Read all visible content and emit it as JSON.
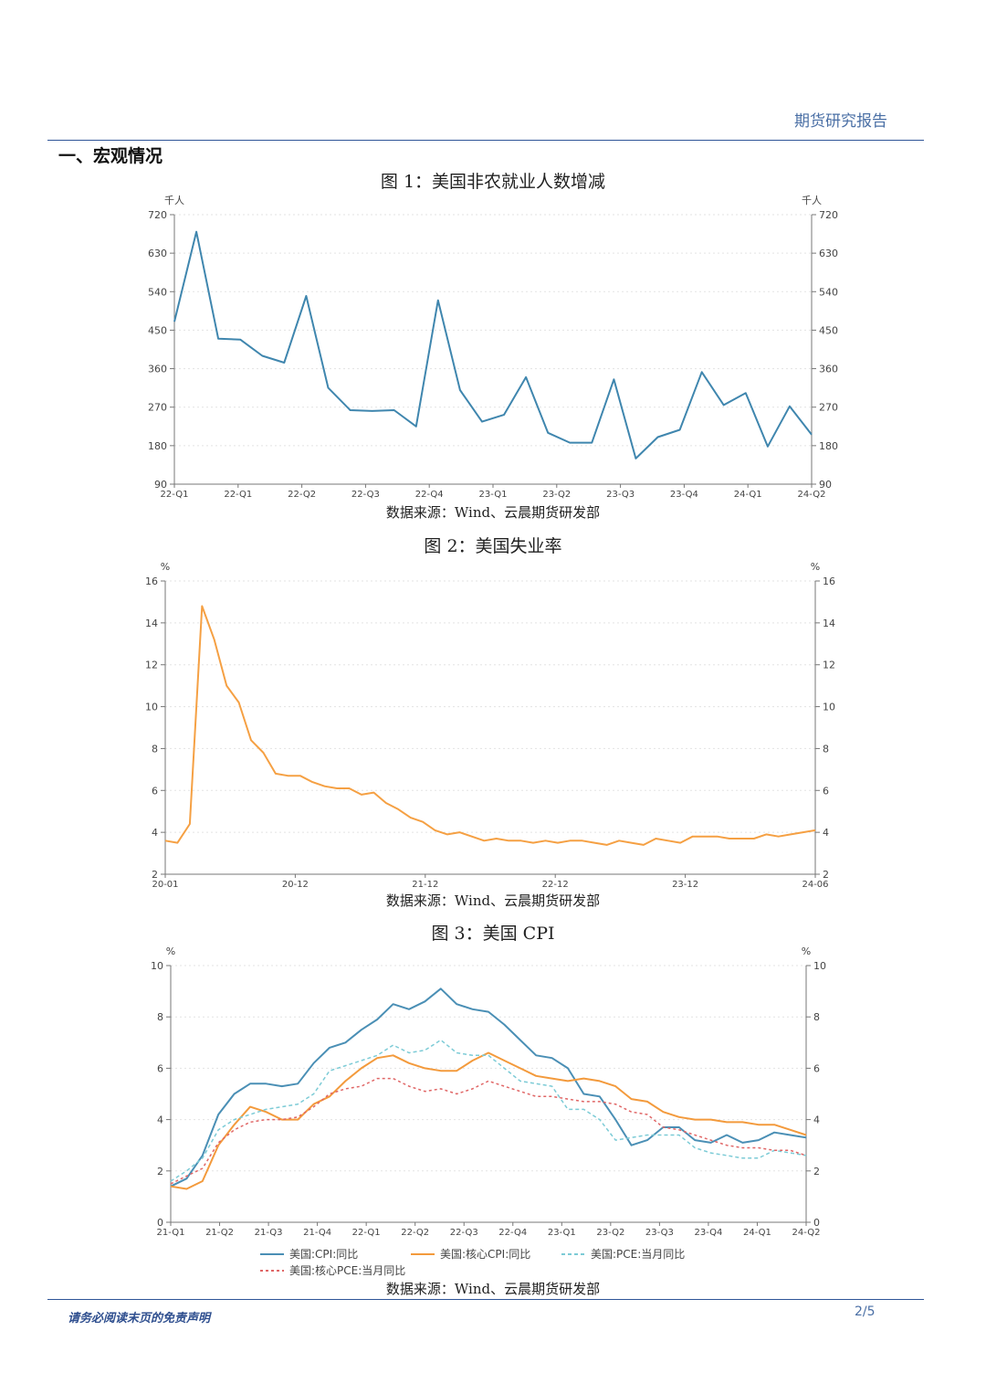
{
  "header": {
    "title": "期货研究报告"
  },
  "section": {
    "title": "一、宏观情况"
  },
  "footer": {
    "note": "请务必阅读末页的免责声明",
    "page": "2/5"
  },
  "chart_data": [
    {
      "type": "line",
      "title": "图 1：美国非农就业人数增减",
      "source": "数据来源：Wind、云晨期货研发部",
      "unit_left": "千人",
      "unit_right": "千人",
      "ylim": [
        90,
        720
      ],
      "yticks": [
        90,
        180,
        270,
        360,
        450,
        540,
        630,
        720
      ],
      "x_tick_labels": [
        "22-Q1",
        "22-Q1",
        "22-Q2",
        "22-Q3",
        "22-Q4",
        "23-Q1",
        "23-Q2",
        "23-Q3",
        "23-Q4",
        "24-Q1",
        "24-Q2"
      ],
      "color": "#3f86ae",
      "series": [
        {
          "values": [
            470,
            680,
            430,
            428,
            390,
            374,
            530,
            315,
            263,
            261,
            263,
            225,
            520,
            310,
            236,
            252,
            340,
            210,
            187,
            187,
            335,
            150,
            200,
            217,
            352,
            275,
            303,
            178,
            272,
            206
          ]
        }
      ]
    },
    {
      "type": "line",
      "title": "图 2：美国失业率",
      "source": "数据来源：Wind、云晨期货研发部",
      "unit_left": "%",
      "unit_right": "%",
      "ylim": [
        2,
        16
      ],
      "yticks": [
        2,
        4,
        6,
        8,
        10,
        12,
        14,
        16
      ],
      "x_tick_labels": [
        "20-01",
        "20-12",
        "21-12",
        "22-12",
        "23-12",
        "24-06"
      ],
      "color": "#f5a043",
      "series": [
        {
          "values": [
            3.6,
            3.5,
            4.4,
            14.8,
            13.2,
            11.0,
            10.2,
            8.4,
            7.8,
            6.8,
            6.7,
            6.7,
            6.4,
            6.2,
            6.1,
            6.1,
            5.8,
            5.9,
            5.4,
            5.1,
            4.7,
            4.5,
            4.1,
            3.9,
            4.0,
            3.8,
            3.6,
            3.7,
            3.6,
            3.6,
            3.5,
            3.6,
            3.5,
            3.6,
            3.6,
            3.5,
            3.4,
            3.6,
            3.5,
            3.4,
            3.7,
            3.6,
            3.5,
            3.8,
            3.8,
            3.8,
            3.7,
            3.7,
            3.7,
            3.9,
            3.8,
            3.9,
            4.0,
            4.1
          ]
        }
      ]
    },
    {
      "type": "line",
      "title": "图 3：美国 CPI",
      "source": "数据来源：Wind、云晨期货研发部",
      "unit_left": "%",
      "unit_right": "%",
      "ylim": [
        0,
        10
      ],
      "yticks": [
        0,
        2,
        4,
        6,
        8,
        10
      ],
      "x_tick_labels": [
        "21-Q1",
        "21-Q2",
        "21-Q3",
        "21-Q4",
        "22-Q1",
        "22-Q2",
        "22-Q3",
        "22-Q4",
        "23-Q1",
        "23-Q2",
        "23-Q3",
        "23-Q4",
        "24-Q1",
        "24-Q2"
      ],
      "series": [
        {
          "name": "美国:CPI:同比",
          "color": "#4a8fb5",
          "dash": "",
          "values": [
            1.4,
            1.7,
            2.6,
            4.2,
            5.0,
            5.4,
            5.4,
            5.3,
            5.4,
            6.2,
            6.8,
            7.0,
            7.5,
            7.9,
            8.5,
            8.3,
            8.6,
            9.1,
            8.5,
            8.3,
            8.2,
            7.7,
            7.1,
            6.5,
            6.4,
            6.0,
            5.0,
            4.9,
            4.0,
            3.0,
            3.2,
            3.7,
            3.7,
            3.2,
            3.1,
            3.4,
            3.1,
            3.2,
            3.5,
            3.4,
            3.3
          ]
        },
        {
          "name": "美国:核心CPI:同比",
          "color": "#f39a3c",
          "dash": "",
          "values": [
            1.4,
            1.3,
            1.6,
            3.0,
            3.8,
            4.5,
            4.3,
            4.0,
            4.0,
            4.6,
            4.9,
            5.5,
            6.0,
            6.4,
            6.5,
            6.2,
            6.0,
            5.9,
            5.9,
            6.3,
            6.6,
            6.3,
            6.0,
            5.7,
            5.6,
            5.5,
            5.6,
            5.5,
            5.3,
            4.8,
            4.7,
            4.3,
            4.1,
            4.0,
            4.0,
            3.9,
            3.9,
            3.8,
            3.8,
            3.6,
            3.4
          ]
        },
        {
          "name": "美国:PCE:当月同比",
          "color": "#7ccbd6",
          "dash": "4,3",
          "values": [
            1.6,
            2.0,
            2.5,
            3.6,
            4.0,
            4.2,
            4.4,
            4.5,
            4.6,
            5.0,
            5.9,
            6.1,
            6.3,
            6.5,
            6.9,
            6.6,
            6.7,
            7.1,
            6.6,
            6.5,
            6.5,
            6.0,
            5.5,
            5.4,
            5.3,
            4.4,
            4.4,
            4.0,
            3.2,
            3.3,
            3.4,
            3.4,
            3.4,
            2.9,
            2.7,
            2.6,
            2.5,
            2.5,
            2.8,
            2.7,
            2.6
          ]
        },
        {
          "name": "美国:核心PCE:当月同比",
          "color": "#e06666",
          "dash": "3,3",
          "values": [
            1.5,
            1.8,
            2.1,
            3.1,
            3.6,
            3.9,
            4.0,
            4.0,
            4.1,
            4.5,
            5.0,
            5.2,
            5.3,
            5.6,
            5.6,
            5.3,
            5.1,
            5.2,
            5.0,
            5.2,
            5.5,
            5.3,
            5.1,
            4.9,
            4.9,
            4.8,
            4.7,
            4.7,
            4.6,
            4.3,
            4.2,
            3.7,
            3.6,
            3.4,
            3.2,
            3.0,
            2.9,
            2.9,
            2.8,
            2.8,
            2.6
          ]
        }
      ]
    }
  ]
}
